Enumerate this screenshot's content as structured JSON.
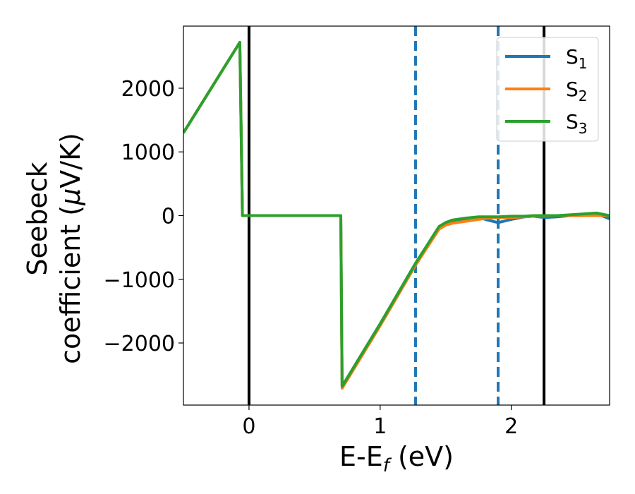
{
  "chart_data": {
    "type": "line",
    "xlabel": "E-E",
    "xlabel_sub": "f",
    "xlabel_unit": " (eV)",
    "ylabel_line1": "Seebeck",
    "ylabel_line2_prefix": "coefficient  (",
    "ylabel_mu": "μ",
    "ylabel_line2_suffix": "V/K)",
    "xlim": [
      -0.5,
      2.75
    ],
    "ylim": [
      -2975,
      2975
    ],
    "xticks": [
      0,
      1,
      2
    ],
    "xtick_labels": [
      "0",
      "1",
      "2"
    ],
    "yticks": [
      2000,
      1000,
      0,
      -1000,
      -2000
    ],
    "ytick_labels": [
      "2000",
      "1000",
      "0",
      "−1000",
      "−2000"
    ],
    "legend_position": "top-right",
    "vlines_solid": [
      0.0,
      2.25
    ],
    "vlines_dashed": [
      1.27,
      1.9
    ],
    "colors": {
      "S1": "#1f77b4",
      "S2": "#ff7f0e",
      "S3": "#2ca02c",
      "solid": "#000000",
      "dashed": "#1f77b4"
    },
    "series": [
      {
        "name": "S",
        "sub": "1",
        "color": "#1f77b4",
        "x": [
          -0.5,
          -0.07,
          -0.05,
          0.7,
          0.71,
          1.0,
          1.27,
          1.45,
          1.5,
          1.55,
          1.65,
          1.75,
          1.82,
          1.9,
          2.0,
          2.1,
          2.17,
          2.25,
          2.35,
          2.5,
          2.65,
          2.75
        ],
        "y": [
          1300,
          2720,
          0,
          0,
          -2680,
          -1700,
          -750,
          -180,
          -120,
          -90,
          -60,
          -30,
          -70,
          -110,
          -60,
          -20,
          -10,
          -30,
          -20,
          10,
          30,
          -50
        ]
      },
      {
        "name": "S",
        "sub": "2",
        "color": "#ff7f0e",
        "x": [
          -0.5,
          -0.07,
          -0.05,
          0.7,
          0.71,
          1.0,
          1.27,
          1.45,
          1.5,
          1.55,
          1.65,
          1.75,
          1.82,
          1.9,
          2.0,
          2.1,
          2.17,
          2.25,
          2.35,
          2.5,
          2.65,
          2.75
        ],
        "y": [
          1300,
          2720,
          0,
          0,
          -2710,
          -1730,
          -780,
          -210,
          -150,
          -120,
          -90,
          -60,
          -40,
          -30,
          -30,
          -20,
          -10,
          -5,
          0,
          0,
          0,
          0
        ]
      },
      {
        "name": "S",
        "sub": "3",
        "color": "#2ca02c",
        "x": [
          -0.5,
          -0.07,
          -0.05,
          0.7,
          0.71,
          1.0,
          1.27,
          1.45,
          1.5,
          1.55,
          1.65,
          1.75,
          1.82,
          1.9,
          2.0,
          2.1,
          2.17,
          2.25,
          2.35,
          2.5,
          2.65,
          2.75
        ],
        "y": [
          1300,
          2720,
          0,
          0,
          -2680,
          -1700,
          -750,
          -170,
          -110,
          -70,
          -40,
          -20,
          -20,
          -20,
          -10,
          -10,
          0,
          0,
          0,
          20,
          40,
          0
        ]
      }
    ]
  }
}
